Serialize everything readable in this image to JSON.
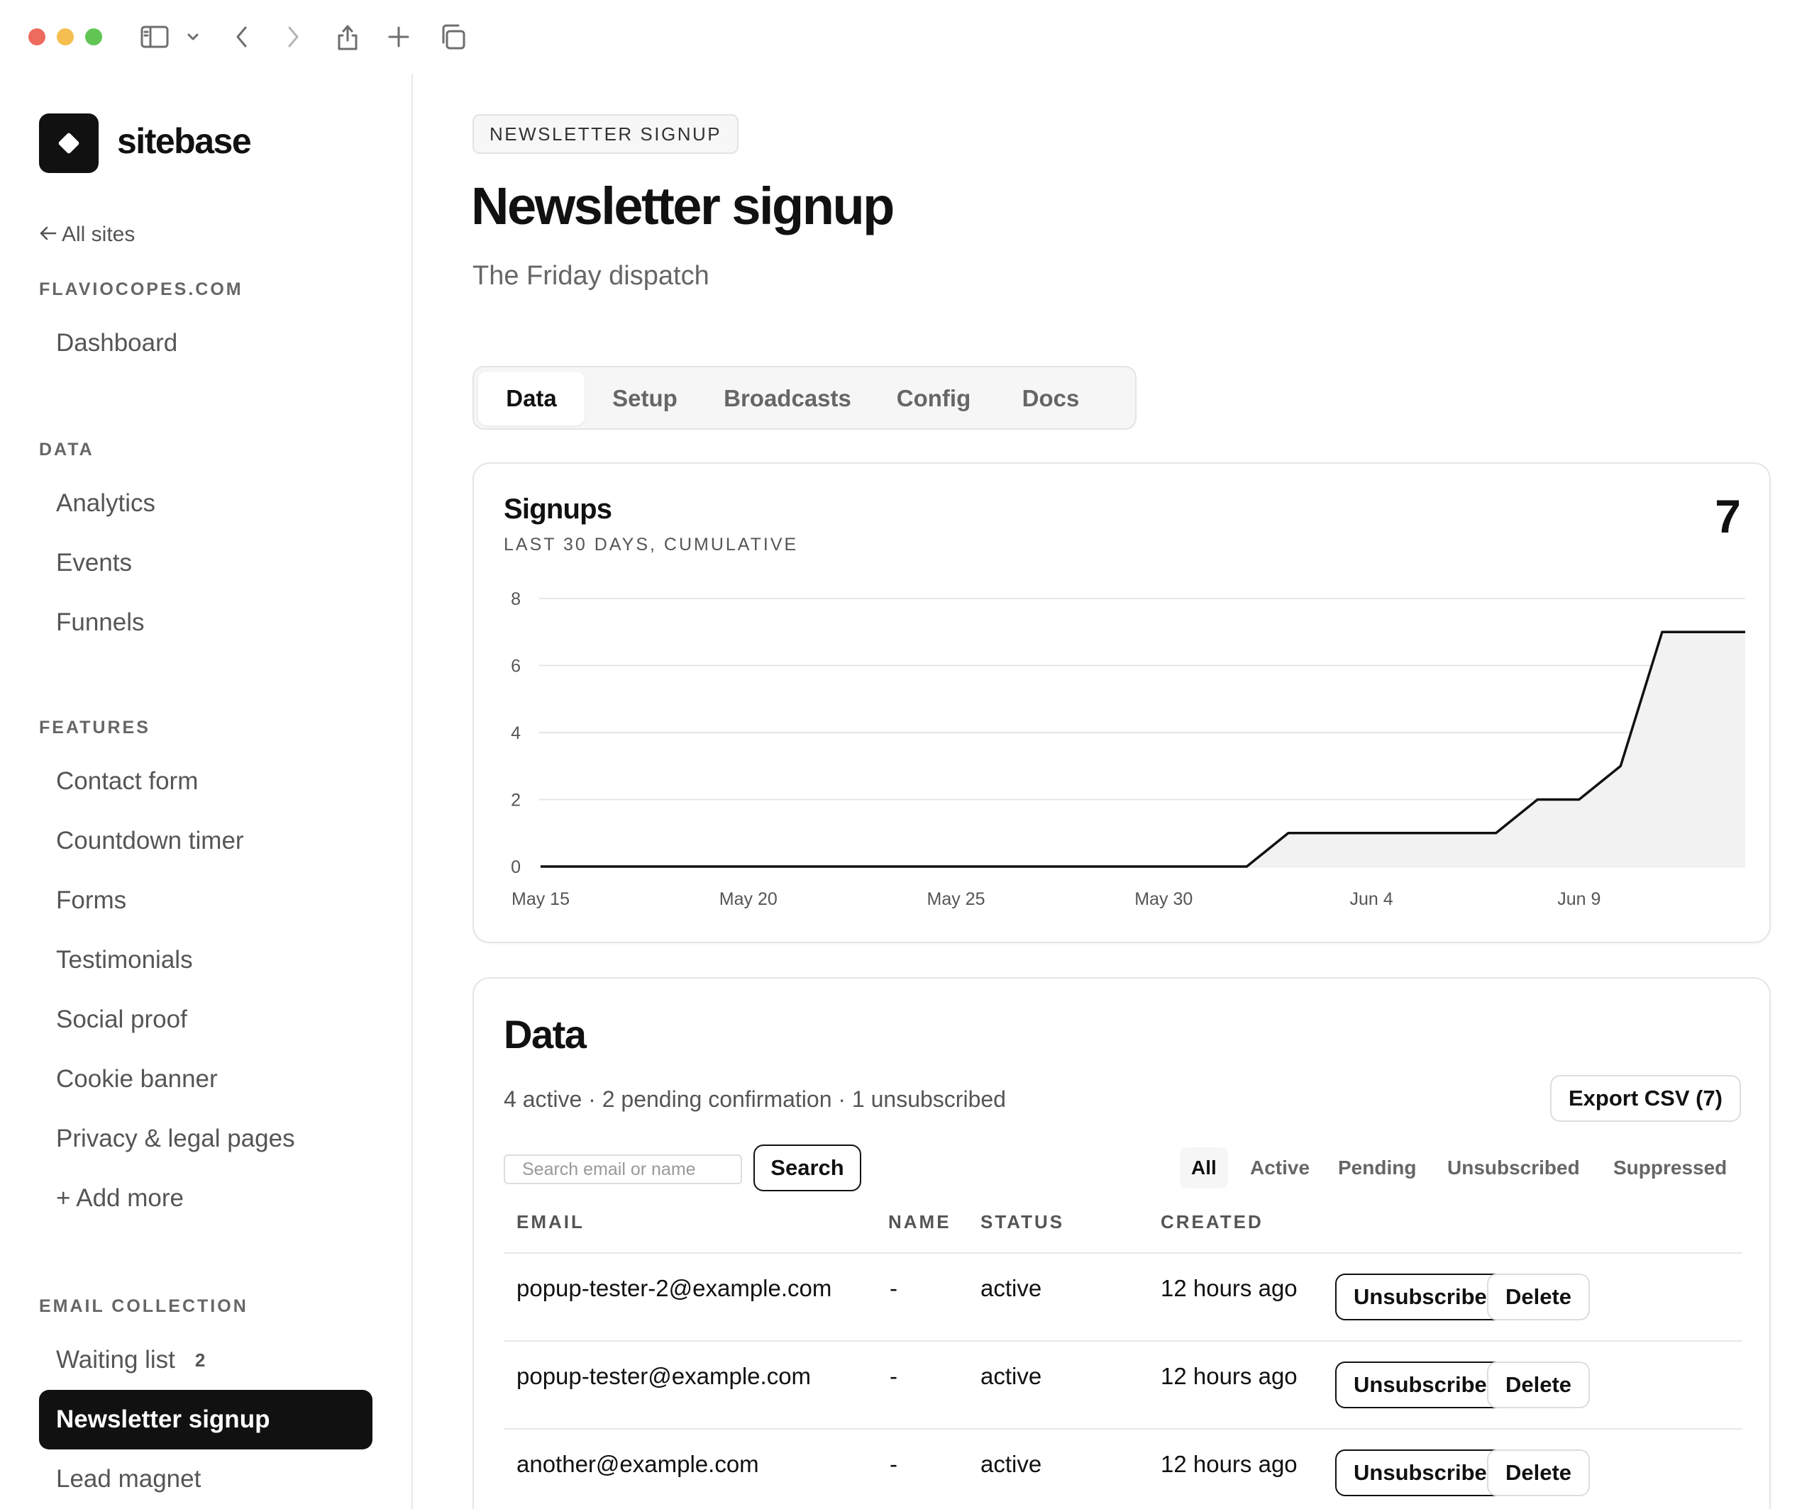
{
  "brand": {
    "name": "sitebase"
  },
  "sidebar": {
    "back_label": "All sites",
    "site_label": "FLAVIOCOPES.COM",
    "dashboard": "Dashboard",
    "data_label": "DATA",
    "data_items": [
      "Analytics",
      "Events",
      "Funnels"
    ],
    "features_label": "FEATURES",
    "feature_items": [
      "Contact form",
      "Countdown timer",
      "Forms",
      "Testimonials",
      "Social proof",
      "Cookie banner",
      "Privacy & legal pages",
      "+ Add more"
    ],
    "email_label": "EMAIL COLLECTION",
    "email_items": [
      {
        "label": "Waiting list",
        "badge": "2"
      },
      {
        "label": "Newsletter signup",
        "active": true
      },
      {
        "label": "Lead magnet"
      }
    ]
  },
  "header": {
    "crumb": "NEWSLETTER SIGNUP",
    "title": "Newsletter signup",
    "subtitle": "The Friday dispatch"
  },
  "tabs": [
    "Data",
    "Setup",
    "Broadcasts",
    "Config",
    "Docs"
  ],
  "active_tab": "Data",
  "chart_card": {
    "title": "Signups",
    "subtitle": "LAST 30 DAYS, CUMULATIVE",
    "total": "7"
  },
  "chart_data": {
    "type": "area",
    "title": "Signups",
    "subtitle": "LAST 30 DAYS, CUMULATIVE",
    "x_tick_labels": [
      "May 15",
      "May 20",
      "May 25",
      "May 30",
      "Jun 4",
      "Jun 9"
    ],
    "y_ticks": [
      0,
      2,
      4,
      6,
      8
    ],
    "ylim": [
      0,
      8
    ],
    "x": [
      "May 15",
      "May 16",
      "May 17",
      "May 18",
      "May 19",
      "May 20",
      "May 21",
      "May 22",
      "May 23",
      "May 24",
      "May 25",
      "May 26",
      "May 27",
      "May 28",
      "May 29",
      "May 30",
      "May 31",
      "Jun 1",
      "Jun 2",
      "Jun 3",
      "Jun 4",
      "Jun 5",
      "Jun 6",
      "Jun 7",
      "Jun 8",
      "Jun 9",
      "Jun 10",
      "Jun 11",
      "Jun 12",
      "Jun 13"
    ],
    "values": [
      0,
      0,
      0,
      0,
      0,
      0,
      0,
      0,
      0,
      0,
      0,
      0,
      0,
      0,
      0,
      0,
      0,
      0,
      1,
      1,
      1,
      1,
      1,
      1,
      2,
      2,
      3,
      7,
      7,
      7
    ],
    "grid": true,
    "line_color": "#111111",
    "fill_color": "#f2f2f2"
  },
  "data_section": {
    "title": "Data",
    "summary": "4 active · 2 pending confirmation · 1 unsubscribed",
    "export_label": "Export CSV (7)",
    "search_placeholder": "Search email or name",
    "search_label": "Search",
    "filters": [
      "All",
      "Active",
      "Pending",
      "Unsubscribed",
      "Suppressed"
    ],
    "active_filter": "All",
    "columns": [
      "EMAIL",
      "NAME",
      "STATUS",
      "CREATED"
    ],
    "rows": [
      {
        "email": "popup-tester-2@example.com",
        "name": "-",
        "status": "active",
        "created": "12 hours ago",
        "action1": "Unsubscribe",
        "action2": "Delete"
      },
      {
        "email": "popup-tester@example.com",
        "name": "-",
        "status": "active",
        "created": "12 hours ago",
        "action1": "Unsubscribe",
        "action2": "Delete"
      },
      {
        "email": "another@example.com",
        "name": "-",
        "status": "active",
        "created": "12 hours ago",
        "action1": "Unsubscribe",
        "action2": "Delete"
      }
    ]
  }
}
